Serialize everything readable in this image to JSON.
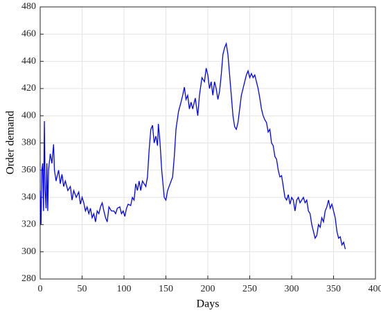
{
  "chart_data": {
    "type": "line",
    "x_label": "Days",
    "y_label": "Order demand",
    "color": "#0000ff",
    "grid": true,
    "xlim": [
      0,
      400
    ],
    "xticks": [
      0,
      50,
      100,
      150,
      200,
      250,
      300,
      350,
      400
    ],
    "ylim": [
      280,
      480
    ],
    "yticks": [
      280,
      300,
      320,
      340,
      360,
      380,
      400,
      420,
      440,
      460,
      480
    ],
    "x": [
      0,
      1,
      2,
      3,
      4,
      5,
      6,
      7,
      8,
      9,
      10,
      12,
      14,
      16,
      17,
      19,
      20,
      22,
      24,
      26,
      28,
      30,
      33,
      36,
      38,
      40,
      43,
      46,
      48,
      50,
      52,
      54,
      56,
      58,
      60,
      62,
      64,
      66,
      68,
      70,
      72,
      74,
      76,
      78,
      80,
      82,
      85,
      88,
      90,
      92,
      95,
      97,
      99,
      101,
      103,
      105,
      108,
      110,
      112,
      114,
      116,
      118,
      120,
      122,
      124,
      126,
      128,
      130,
      132,
      134,
      136,
      138,
      140,
      141,
      143,
      145,
      148,
      150,
      152,
      155,
      158,
      160,
      162,
      165,
      168,
      170,
      172,
      174,
      176,
      178,
      180,
      182,
      185,
      188,
      190,
      193,
      196,
      198,
      200,
      202,
      204,
      206,
      208,
      210,
      212,
      214,
      216,
      218,
      220,
      222,
      224,
      226,
      228,
      230,
      232,
      234,
      236,
      238,
      240,
      242,
      244,
      246,
      248,
      250,
      252,
      254,
      256,
      258,
      260,
      262,
      264,
      266,
      268,
      270,
      272,
      274,
      276,
      278,
      280,
      282,
      284,
      286,
      288,
      290,
      292,
      294,
      296,
      298,
      300,
      302,
      304,
      306,
      308,
      310,
      312,
      314,
      316,
      318,
      320,
      322,
      324,
      326,
      328,
      330,
      332,
      334,
      336,
      338,
      340,
      342,
      344,
      346,
      348,
      350,
      352,
      354,
      356,
      358,
      360,
      362,
      364
    ],
    "values": [
      345,
      320,
      360,
      365,
      330,
      396,
      345,
      332,
      365,
      330,
      360,
      372,
      365,
      379,
      360,
      352,
      355,
      360,
      350,
      357,
      348,
      352,
      345,
      348,
      338,
      345,
      340,
      344,
      335,
      340,
      336,
      330,
      333,
      328,
      332,
      325,
      328,
      322,
      330,
      328,
      333,
      336,
      330,
      325,
      322,
      333,
      330,
      330,
      328,
      332,
      333,
      328,
      330,
      326,
      332,
      335,
      334,
      340,
      338,
      350,
      345,
      352,
      345,
      352,
      350,
      348,
      355,
      375,
      390,
      393,
      380,
      385,
      378,
      394,
      380,
      360,
      340,
      338,
      345,
      350,
      355,
      370,
      390,
      403,
      410,
      415,
      421,
      412,
      415,
      405,
      410,
      405,
      413,
      400,
      415,
      428,
      425,
      435,
      430,
      420,
      425,
      415,
      425,
      420,
      412,
      418,
      430,
      445,
      450,
      453,
      445,
      430,
      415,
      400,
      392,
      390,
      395,
      405,
      415,
      420,
      425,
      430,
      433,
      428,
      431,
      428,
      430,
      425,
      420,
      413,
      405,
      400,
      397,
      395,
      388,
      390,
      380,
      378,
      370,
      368,
      360,
      355,
      356,
      348,
      340,
      338,
      342,
      335,
      340,
      338,
      330,
      338,
      340,
      336,
      338,
      340,
      336,
      338,
      330,
      328,
      320,
      315,
      310,
      312,
      320,
      318,
      325,
      322,
      330,
      333,
      338,
      332,
      335,
      330,
      325,
      315,
      310,
      311,
      305,
      307,
      302
    ]
  }
}
